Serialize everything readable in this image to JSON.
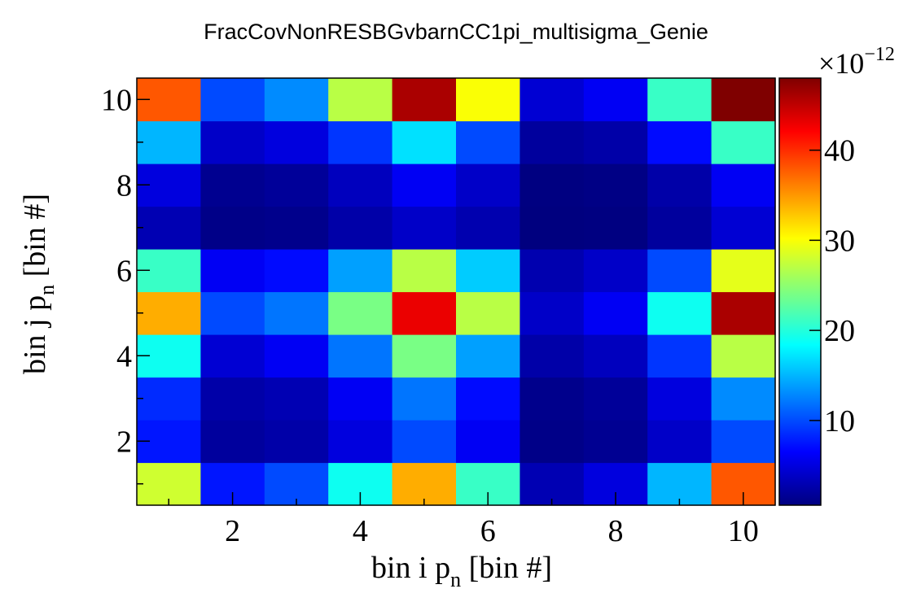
{
  "chart_data": {
    "type": "heatmap",
    "title": "FracCovNonRESBGvbarnCC1pi_multisigma_Genie",
    "xlabel": "bin i p",
    "xlabel_sub": "n",
    "xlabel_suffix": " [bin #]",
    "ylabel": "bin j p",
    "ylabel_sub": "n",
    "ylabel_suffix": " [bin #]",
    "x_bins": [
      1,
      2,
      3,
      4,
      5,
      6,
      7,
      8,
      9,
      10
    ],
    "y_bins": [
      1,
      2,
      3,
      4,
      5,
      6,
      7,
      8,
      9,
      10
    ],
    "xlim": [
      0.5,
      10.5
    ],
    "ylim": [
      0.5,
      10.5
    ],
    "x_ticks": [
      "2",
      "4",
      "6",
      "8",
      "10"
    ],
    "y_ticks": [
      "2",
      "4",
      "6",
      "8",
      "10"
    ],
    "colorbar": {
      "range": [
        0.6,
        48
      ],
      "ticks": [
        "10",
        "20",
        "30",
        "40"
      ],
      "exponent_base": "×10",
      "exponent_power": "−12",
      "palette": [
        "#00007f",
        "#0000ff",
        "#007fff",
        "#00ffff",
        "#7fff7f",
        "#ffff00",
        "#ff7f00",
        "#ff0000",
        "#7f0000"
      ]
    },
    "z_rows_from_bottom": [
      [
        28,
        7.5,
        10,
        19,
        34,
        21,
        3,
        5,
        15,
        38
      ],
      [
        7.5,
        2,
        2.5,
        5,
        10,
        6,
        1,
        1.5,
        4,
        10
      ],
      [
        8.5,
        2.5,
        3,
        6,
        12,
        7,
        1.2,
        1.8,
        5,
        13
      ],
      [
        19,
        4.5,
        6,
        12,
        24,
        14,
        2.5,
        3.5,
        9,
        27
      ],
      [
        34,
        10,
        12,
        24,
        43,
        27,
        4,
        6,
        19,
        46
      ],
      [
        21,
        6,
        7,
        14,
        27,
        16,
        2.8,
        4,
        10,
        29
      ],
      [
        3,
        1,
        1.2,
        2.5,
        4,
        2.8,
        0.5,
        0.7,
        2,
        4.5
      ],
      [
        5,
        1.4,
        1.8,
        3.5,
        6,
        4,
        0.7,
        0.9,
        2.5,
        6
      ],
      [
        15,
        4,
        5,
        9,
        17,
        10,
        2,
        2.5,
        7,
        21
      ],
      [
        38,
        10,
        13,
        27,
        46,
        30,
        4.5,
        6,
        21,
        48
      ]
    ]
  }
}
